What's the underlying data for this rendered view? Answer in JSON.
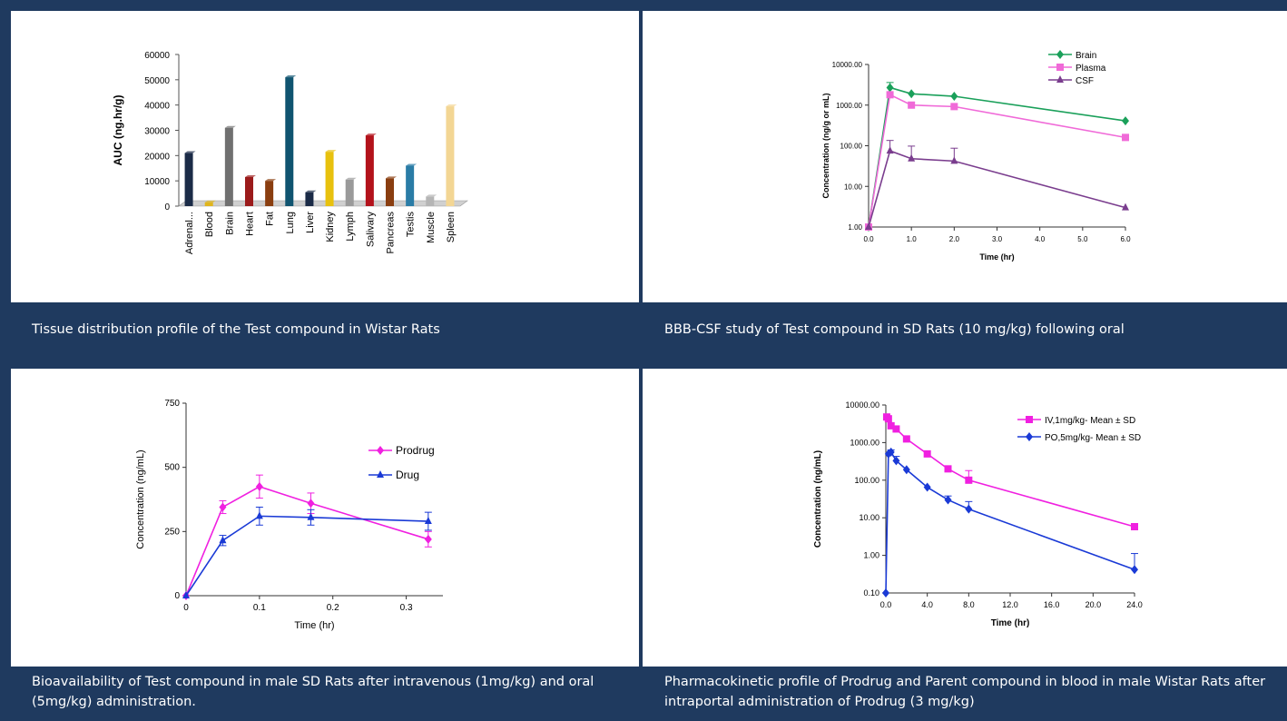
{
  "panels": [
    {
      "caption": "Tissue distribution profile of the Test compound in Wistar Rats"
    },
    {
      "caption": "BBB-CSF study of Test compound in SD Rats (10 mg/kg) following oral"
    },
    {
      "caption": "Bioavailability of Test compound in male SD Rats after intravenous (1mg/kg) and oral (5mg/kg) administration."
    },
    {
      "caption": "Pharmacokinetic profile of Prodrug and Parent compound in blood in male Wistar Rats after intraportal administration of Prodrug (3 mg/kg)"
    }
  ],
  "chart_data": [
    {
      "type": "bar",
      "title": "",
      "xlabel": "",
      "ylabel": "AUC (ng.hr/g)",
      "ylim": [
        0,
        60000
      ],
      "yticks": [
        "0",
        "10000",
        "20000",
        "30000",
        "40000",
        "50000",
        "60000"
      ],
      "categories": [
        "Adrenal...",
        "Blood",
        "Brain",
        "Heart",
        "Fat",
        "Lung",
        "Liver",
        "Kidney",
        "Lymph",
        "Salivary",
        "Pancreas",
        "Testis",
        "Muscle",
        "Spleen"
      ],
      "values": [
        21000,
        1500,
        31000,
        11500,
        10000,
        51000,
        5500,
        21500,
        10500,
        28000,
        11000,
        16000,
        3800,
        39500
      ],
      "colors": [
        "#1b2b47",
        "#e0b51c",
        "#707070",
        "#9b1b1b",
        "#8a3e10",
        "#105470",
        "#1b2b47",
        "#e8c10e",
        "#9a9a9a",
        "#b3121b",
        "#8a3e10",
        "#2a7ca6",
        "#b5b5b5",
        "#f3d694"
      ],
      "grid": false,
      "legend": "none"
    },
    {
      "type": "line",
      "title": "",
      "xlabel": "Time (hr)",
      "ylabel": "Concentration (ng/g or mL)",
      "yscale": "log",
      "xlim": [
        0,
        6
      ],
      "ylim": [
        1,
        10000
      ],
      "xticks": [
        "0.0",
        "1.0",
        "2.0",
        "3.0",
        "4.0",
        "5.0",
        "6.0"
      ],
      "yticks": [
        "1.00",
        "10.00",
        "100.00",
        "1000.00",
        "10000.00"
      ],
      "legend": "top-right",
      "series": [
        {
          "name": "Brain",
          "color": "#1aa05a",
          "marker": "diamond",
          "x": [
            0,
            0.5,
            1,
            2,
            6
          ],
          "y": [
            1,
            2700,
            1900,
            1650,
            410
          ],
          "err": [
            0,
            900,
            0,
            0,
            0
          ]
        },
        {
          "name": "Plasma",
          "color": "#f06ad8",
          "marker": "square",
          "x": [
            0,
            0.5,
            1,
            2,
            6
          ],
          "y": [
            1,
            1800,
            1000,
            920,
            160
          ],
          "err": [
            0,
            0,
            0,
            0,
            0
          ]
        },
        {
          "name": "CSF",
          "color": "#7a3d8e",
          "marker": "triangle",
          "x": [
            0,
            0.5,
            1,
            2,
            6
          ],
          "y": [
            1,
            75,
            48,
            42,
            3
          ],
          "err": [
            0,
            60,
            50,
            45,
            0
          ]
        }
      ]
    },
    {
      "type": "line",
      "title": "",
      "xlabel": "Time (hr)",
      "ylabel": "Concentration (ng/mL)",
      "xlim": [
        0,
        0.35
      ],
      "ylim": [
        0,
        750
      ],
      "xticks": [
        "0",
        "0.1",
        "0.2",
        "0.3"
      ],
      "yticks": [
        "0",
        "250",
        "500",
        "750"
      ],
      "legend": "top-right",
      "series": [
        {
          "name": "Prodrug",
          "color": "#f020e0",
          "marker": "diamond",
          "x": [
            0,
            0.05,
            0.1,
            0.17,
            0.33
          ],
          "y": [
            0,
            345,
            425,
            360,
            220
          ],
          "err": [
            0,
            25,
            45,
            40,
            30
          ]
        },
        {
          "name": "Drug",
          "color": "#1a3ad6",
          "marker": "triangle",
          "x": [
            0,
            0.05,
            0.1,
            0.17,
            0.33
          ],
          "y": [
            0,
            215,
            310,
            305,
            290
          ],
          "err": [
            0,
            20,
            35,
            30,
            35
          ]
        }
      ]
    },
    {
      "type": "line",
      "title": "",
      "xlabel": "Time (hr)",
      "ylabel": "Concentration (ng/mL)",
      "yscale": "log",
      "xlim": [
        0,
        24
      ],
      "ylim": [
        0.1,
        10000
      ],
      "xticks": [
        "0.0",
        "4.0",
        "8.0",
        "12.0",
        "16.0",
        "20.0",
        "24.0"
      ],
      "yticks": [
        "0.10",
        "1.00",
        "10.00",
        "100.00",
        "1000.00",
        "10000.00"
      ],
      "legend": "top-right",
      "series": [
        {
          "name": "IV,1mg/kg- Mean ± SD",
          "color": "#f020e0",
          "marker": "square",
          "x": [
            0.083,
            0.25,
            0.5,
            1,
            2,
            4,
            6,
            8,
            24
          ],
          "y": [
            4800,
            4300,
            2800,
            2300,
            1250,
            500,
            200,
            100,
            5.8
          ],
          "err": [
            0,
            0,
            0,
            0,
            0,
            0,
            0,
            80,
            0
          ]
        },
        {
          "name": "PO,5mg/kg- Mean ± SD",
          "color": "#1a3ad6",
          "marker": "diamond",
          "x": [
            0,
            0.25,
            0.5,
            1,
            2,
            4,
            6,
            8,
            24
          ],
          "y": [
            0.1,
            500,
            560,
            330,
            190,
            65,
            30,
            17,
            0.42
          ],
          "err": [
            0,
            0,
            80,
            100,
            0,
            0,
            8,
            10,
            0.7
          ]
        }
      ]
    }
  ]
}
